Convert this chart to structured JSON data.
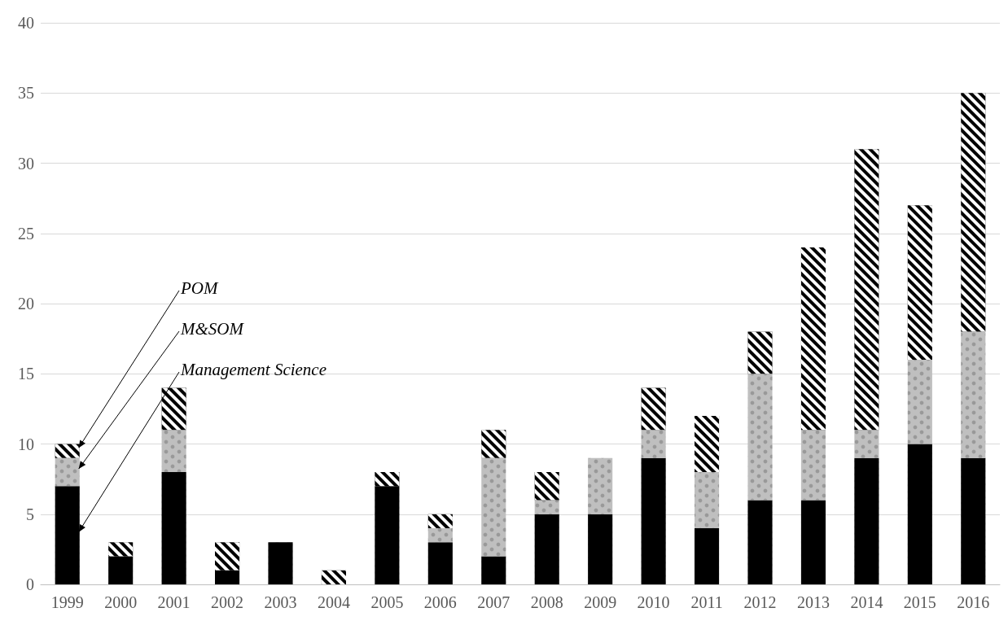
{
  "chart_data": {
    "type": "bar",
    "stacked": true,
    "categories": [
      "1999",
      "2000",
      "2001",
      "2002",
      "2003",
      "2004",
      "2005",
      "2006",
      "2007",
      "2008",
      "2009",
      "2010",
      "2011",
      "2012",
      "2013",
      "2014",
      "2015",
      "2016"
    ],
    "series": [
      {
        "name": "Management Science",
        "color": "#000000",
        "values": [
          7,
          2,
          8,
          1,
          3,
          0,
          7,
          3,
          2,
          5,
          5,
          9,
          4,
          6,
          6,
          9,
          10,
          9
        ]
      },
      {
        "name": "M&SOM",
        "color": "#bfbfbf",
        "values": [
          2,
          0,
          3,
          0,
          0,
          0,
          0,
          1,
          7,
          1,
          4,
          2,
          4,
          9,
          5,
          2,
          6,
          9
        ]
      },
      {
        "name": "POM",
        "color": "#000000",
        "values": [
          1,
          1,
          3,
          2,
          0,
          1,
          1,
          1,
          2,
          2,
          0,
          3,
          4,
          3,
          13,
          20,
          11,
          17
        ]
      }
    ],
    "ylim": [
      0,
      40
    ],
    "yticks": [
      0,
      5,
      10,
      15,
      20,
      25,
      30,
      35,
      40
    ],
    "grid": "y",
    "legend": false
  }
}
